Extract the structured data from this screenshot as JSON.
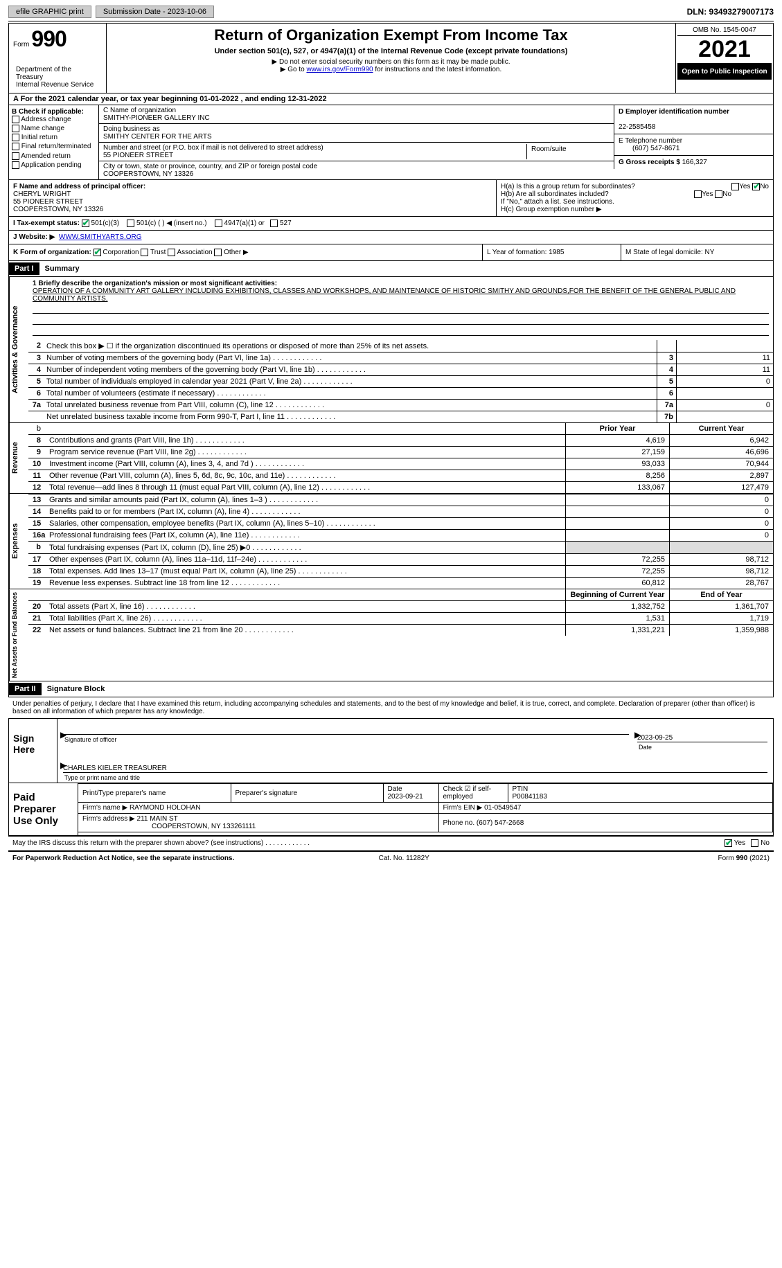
{
  "top": {
    "efile": "efile GRAPHIC print",
    "submission": "Submission Date - 2023-10-06",
    "dln": "DLN: 93493279007173"
  },
  "header": {
    "form_prefix": "Form",
    "form_no": "990",
    "title": "Return of Organization Exempt From Income Tax",
    "subtitle": "Under section 501(c), 527, or 4947(a)(1) of the Internal Revenue Code (except private foundations)",
    "note1": "▶ Do not enter social security numbers on this form as it may be made public.",
    "note2_pre": "▶ Go to ",
    "note2_link": "www.irs.gov/Form990",
    "note2_post": " for instructions and the latest information.",
    "dept": "Department of the Treasury\nInternal Revenue Service",
    "omb": "OMB No. 1545-0047",
    "year": "2021",
    "inspection": "Open to Public Inspection"
  },
  "A": {
    "text": "A For the 2021 calendar year, or tax year beginning 01-01-2022   , and ending 12-31-2022"
  },
  "B": {
    "label": "B Check if applicable:",
    "items": [
      "Address change",
      "Name change",
      "Initial return",
      "Final return/terminated",
      "Amended return",
      "Application pending"
    ]
  },
  "C": {
    "name_lbl": "C Name of organization",
    "name": "SMITHY-PIONEER GALLERY INC",
    "dba_lbl": "Doing business as",
    "dba": "SMITHY CENTER FOR THE ARTS",
    "street_lbl": "Number and street (or P.O. box if mail is not delivered to street address)",
    "street": "55 PIONEER STREET",
    "room_lbl": "Room/suite",
    "city_lbl": "City or town, state or province, country, and ZIP or foreign postal code",
    "city": "COOPERSTOWN, NY  13326"
  },
  "D": {
    "ein_lbl": "D Employer identification number",
    "ein": "22-2585458",
    "tel_lbl": "E Telephone number",
    "tel": "(607) 547-8671",
    "gross_lbl": "G Gross receipts $",
    "gross": "166,327"
  },
  "F": {
    "lbl": "F Name and address of principal officer:",
    "name": "CHERYL WRIGHT",
    "street": "55 PIONEER STREET",
    "city": "COOPERSTOWN, NY  13326"
  },
  "H": {
    "a": "H(a)  Is this a group return for subordinates?",
    "b": "H(b)  Are all subordinates included?",
    "b_note": "If \"No,\" attach a list. See instructions.",
    "c": "H(c)  Group exemption number ▶",
    "yes": "Yes",
    "no": "No"
  },
  "I": {
    "lbl": "I    Tax-exempt status:",
    "opts": [
      "501(c)(3)",
      "501(c) (  ) ◀ (insert no.)",
      "4947(a)(1) or",
      "527"
    ]
  },
  "J": {
    "lbl": "J    Website: ▶",
    "val": "WWW.SMITHYARTS.ORG"
  },
  "K": {
    "lbl": "K Form of organization:",
    "opts": [
      "Corporation",
      "Trust",
      "Association",
      "Other ▶"
    ],
    "L": "L Year of formation: 1985",
    "M": "M State of legal domicile: NY"
  },
  "part1": {
    "hdr": "Part I",
    "title": "Summary",
    "mission_lbl": "1   Briefly describe the organization's mission or most significant activities:",
    "mission": "OPERATION OF A COMMUNITY ART GALLERY INCLUDING EXHIBITIONS, CLASSES AND WORKSHOPS, AND MAINTENANCE OF HISTORIC SMITHY AND GROUNDS,FOR THE BENEFIT OF THE GENERAL PUBLIC AND COMMUNITY ARTISTS.",
    "line2": "Check this box ▶ ☐ if the organization discontinued its operations or disposed of more than 25% of its net assets.",
    "gov_rows": [
      {
        "n": "3",
        "t": "Number of voting members of the governing body (Part VI, line 1a)",
        "b": "3",
        "v": "11"
      },
      {
        "n": "4",
        "t": "Number of independent voting members of the governing body (Part VI, line 1b)",
        "b": "4",
        "v": "11"
      },
      {
        "n": "5",
        "t": "Total number of individuals employed in calendar year 2021 (Part V, line 2a)",
        "b": "5",
        "v": "0"
      },
      {
        "n": "6",
        "t": "Total number of volunteers (estimate if necessary)",
        "b": "6",
        "v": ""
      },
      {
        "n": "7a",
        "t": "Total unrelated business revenue from Part VIII, column (C), line 12",
        "b": "7a",
        "v": "0"
      },
      {
        "n": "",
        "t": "Net unrelated business taxable income from Form 990-T, Part I, line 11",
        "b": "7b",
        "v": ""
      }
    ],
    "col_py": "Prior Year",
    "col_cy": "Current Year",
    "rev_rows": [
      {
        "n": "8",
        "t": "Contributions and grants (Part VIII, line 1h)",
        "py": "4,619",
        "cy": "6,942"
      },
      {
        "n": "9",
        "t": "Program service revenue (Part VIII, line 2g)",
        "py": "27,159",
        "cy": "46,696"
      },
      {
        "n": "10",
        "t": "Investment income (Part VIII, column (A), lines 3, 4, and 7d )",
        "py": "93,033",
        "cy": "70,944"
      },
      {
        "n": "11",
        "t": "Other revenue (Part VIII, column (A), lines 5, 6d, 8c, 9c, 10c, and 11e)",
        "py": "8,256",
        "cy": "2,897"
      },
      {
        "n": "12",
        "t": "Total revenue—add lines 8 through 11 (must equal Part VIII, column (A), line 12)",
        "py": "133,067",
        "cy": "127,479"
      }
    ],
    "exp_rows": [
      {
        "n": "13",
        "t": "Grants and similar amounts paid (Part IX, column (A), lines 1–3 )",
        "py": "",
        "cy": "0"
      },
      {
        "n": "14",
        "t": "Benefits paid to or for members (Part IX, column (A), line 4)",
        "py": "",
        "cy": "0"
      },
      {
        "n": "15",
        "t": "Salaries, other compensation, employee benefits (Part IX, column (A), lines 5–10)",
        "py": "",
        "cy": "0"
      },
      {
        "n": "16a",
        "t": "Professional fundraising fees (Part IX, column (A), line 11e)",
        "py": "",
        "cy": "0"
      },
      {
        "n": "b",
        "t": "Total fundraising expenses (Part IX, column (D), line 25) ▶0",
        "py": "SHADE",
        "cy": "SHADE"
      },
      {
        "n": "17",
        "t": "Other expenses (Part IX, column (A), lines 11a–11d, 11f–24e)",
        "py": "72,255",
        "cy": "98,712"
      },
      {
        "n": "18",
        "t": "Total expenses. Add lines 13–17 (must equal Part IX, column (A), line 25)",
        "py": "72,255",
        "cy": "98,712"
      },
      {
        "n": "19",
        "t": "Revenue less expenses. Subtract line 18 from line 12",
        "py": "60,812",
        "cy": "28,767"
      }
    ],
    "col_boy": "Beginning of Current Year",
    "col_eoy": "End of Year",
    "net_rows": [
      {
        "n": "20",
        "t": "Total assets (Part X, line 16)",
        "py": "1,332,752",
        "cy": "1,361,707"
      },
      {
        "n": "21",
        "t": "Total liabilities (Part X, line 26)",
        "py": "1,531",
        "cy": "1,719"
      },
      {
        "n": "22",
        "t": "Net assets or fund balances. Subtract line 21 from line 20",
        "py": "1,331,221",
        "cy": "1,359,988"
      }
    ],
    "vlabels": {
      "gov": "Activities & Governance",
      "rev": "Revenue",
      "exp": "Expenses",
      "net": "Net Assets or Fund Balances"
    }
  },
  "part2": {
    "hdr": "Part II",
    "title": "Signature Block",
    "decl": "Under penalties of perjury, I declare that I have examined this return, including accompanying schedules and statements, and to the best of my knowledge and belief, it is true, correct, and complete. Declaration of preparer (other than officer) is based on all information of which preparer has any knowledge.",
    "sign_here": "Sign Here",
    "sig_officer": "Signature of officer",
    "sig_date": "2023-09-25",
    "sig_date_lbl": "Date",
    "officer_name": "CHARLES KIELER  TREASURER",
    "officer_sub": "Type or print name and title",
    "paid": "Paid Preparer Use Only",
    "p_name_lbl": "Print/Type preparer's name",
    "p_sig_lbl": "Preparer's signature",
    "p_date_lbl": "Date",
    "p_date": "2023-09-21",
    "p_check_lbl": "Check ☑ if self-employed",
    "ptin_lbl": "PTIN",
    "ptin": "P00841183",
    "firm_name_lbl": "Firm's name    ▶",
    "firm_name": "RAYMOND HOLOHAN",
    "firm_ein_lbl": "Firm's EIN ▶",
    "firm_ein": "01-0549547",
    "firm_addr_lbl": "Firm's address ▶",
    "firm_addr": "211 MAIN ST",
    "firm_city": "COOPERSTOWN, NY  133261111",
    "firm_phone_lbl": "Phone no.",
    "firm_phone": "(607) 547-2668",
    "discuss": "May the IRS discuss this return with the preparer shown above? (see instructions)",
    "yes": "Yes",
    "no": "No"
  },
  "footer": {
    "pra": "For Paperwork Reduction Act Notice, see the separate instructions.",
    "cat": "Cat. No. 11282Y",
    "form": "Form 990 (2021)"
  }
}
